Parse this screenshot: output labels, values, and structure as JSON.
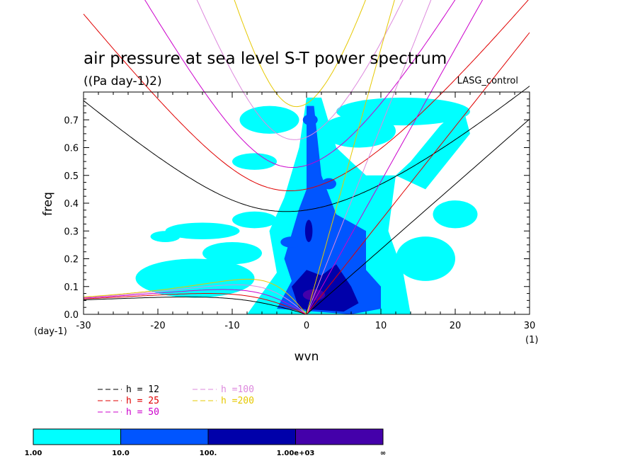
{
  "chart_data": {
    "type": "heatmap",
    "title": "air pressure at sea level S-T power spectrum",
    "subtitle": "((Pa day-1)2)",
    "run_label": "LASG_control",
    "xlabel": "wvn",
    "ylabel": "freq",
    "x_unit": "(1)",
    "y_unit": "(day-1)",
    "xlim": [
      -30,
      30
    ],
    "ylim": [
      0,
      0.8
    ],
    "x_ticks": [
      "-30",
      "-20",
      "-10",
      "0",
      "10",
      "20",
      "30"
    ],
    "y_ticks": [
      "0.0",
      "0.1",
      "0.2",
      "0.3",
      "0.4",
      "0.5",
      "0.6",
      "0.7"
    ],
    "dispersion_curves": [
      {
        "label": "h = 12",
        "h": 12,
        "color": "#000000"
      },
      {
        "label": "h = 25",
        "h": 25,
        "color": "#e00000"
      },
      {
        "label": "h = 50",
        "h": 50,
        "color": "#cc00cc"
      },
      {
        "label": "h =100",
        "h": 100,
        "color": "#dd88dd"
      },
      {
        "label": "h =200",
        "h": 200,
        "color": "#e6c800"
      }
    ],
    "colorbar": {
      "boundaries": [
        "1.00",
        "10.0",
        "100.",
        "1.00e+03",
        "∞"
      ],
      "colors": [
        "#00ffff",
        "#0055ff",
        "#0000aa",
        "#4400aa"
      ]
    },
    "contour_regions": [
      {
        "level": 1,
        "shape": "poly",
        "points": [
          [
            -8,
            0
          ],
          [
            -4,
            0.15
          ],
          [
            -5,
            0.3
          ],
          [
            -3,
            0.42
          ],
          [
            -1,
            0.6
          ],
          [
            0,
            0.78
          ],
          [
            2,
            0.78
          ],
          [
            4,
            0.6
          ],
          [
            8,
            0.5
          ],
          [
            12,
            0.5
          ],
          [
            16,
            0.45
          ],
          [
            22,
            0.65
          ],
          [
            21,
            0.75
          ],
          [
            18,
            0.68
          ],
          [
            14,
            0.55
          ],
          [
            12,
            0.5
          ],
          [
            11,
            0.3
          ],
          [
            13,
            0.15
          ],
          [
            14,
            0
          ]
        ]
      },
      {
        "level": 1,
        "shape": "blob",
        "cx": -14,
        "cy": 0.3,
        "rx": 5,
        "ry": 0.03
      },
      {
        "level": 1,
        "shape": "blob",
        "cx": -15,
        "cy": 0.13,
        "rx": 8,
        "ry": 0.07
      },
      {
        "level": 1,
        "shape": "blob",
        "cx": -10,
        "cy": 0.22,
        "rx": 4,
        "ry": 0.04
      },
      {
        "level": 1,
        "shape": "blob",
        "cx": -7,
        "cy": 0.34,
        "rx": 3,
        "ry": 0.03
      },
      {
        "level": 1,
        "shape": "blob",
        "cx": -19,
        "cy": 0.28,
        "rx": 2,
        "ry": 0.02
      },
      {
        "level": 1,
        "shape": "blob",
        "cx": 16,
        "cy": 0.2,
        "rx": 4,
        "ry": 0.08
      },
      {
        "level": 1,
        "shape": "blob",
        "cx": 20,
        "cy": 0.36,
        "rx": 3,
        "ry": 0.05
      },
      {
        "level": 1,
        "shape": "blob",
        "cx": 13,
        "cy": 0.73,
        "rx": 9,
        "ry": 0.05
      },
      {
        "level": 1,
        "shape": "blob",
        "cx": 7,
        "cy": 0.66,
        "rx": 5,
        "ry": 0.06
      },
      {
        "level": 1,
        "shape": "blob",
        "cx": -5,
        "cy": 0.7,
        "rx": 4,
        "ry": 0.05
      },
      {
        "level": 1,
        "shape": "blob",
        "cx": -7,
        "cy": 0.55,
        "rx": 3,
        "ry": 0.03
      },
      {
        "level": 10,
        "shape": "poly",
        "points": [
          [
            -4,
            0.02
          ],
          [
            -2,
            0.12
          ],
          [
            -3,
            0.2
          ],
          [
            -1,
            0.38
          ],
          [
            0,
            0.45
          ],
          [
            0,
            0.75
          ],
          [
            1,
            0.75
          ],
          [
            2,
            0.5
          ],
          [
            4,
            0.36
          ],
          [
            8,
            0.3
          ],
          [
            8,
            0.16
          ],
          [
            10,
            0.1
          ],
          [
            10,
            0.02
          ],
          [
            6,
            0
          ]
        ]
      },
      {
        "level": 10,
        "shape": "blob",
        "cx": -2,
        "cy": 0.26,
        "rx": 1.5,
        "ry": 0.02
      },
      {
        "level": 10,
        "shape": "blob",
        "cx": 0.5,
        "cy": 0.7,
        "rx": 1,
        "ry": 0.02
      },
      {
        "level": 10,
        "shape": "blob",
        "cx": 3,
        "cy": 0.47,
        "rx": 1,
        "ry": 0.02
      },
      {
        "level": 100,
        "shape": "poly",
        "points": [
          [
            -1,
            0.02
          ],
          [
            -2,
            0.1
          ],
          [
            0,
            0.16
          ],
          [
            2,
            0.14
          ],
          [
            4,
            0.18
          ],
          [
            6,
            0.1
          ],
          [
            7,
            0.04
          ],
          [
            5,
            0.01
          ]
        ]
      },
      {
        "level": 100,
        "shape": "blob",
        "cx": 0.3,
        "cy": 0.3,
        "rx": 0.5,
        "ry": 0.04
      },
      {
        "level": 1000,
        "shape": "blob",
        "cx": 1,
        "cy": 0.07,
        "rx": 1.5,
        "ry": 0.02
      }
    ]
  },
  "page": {
    "background": "#ffffff"
  }
}
